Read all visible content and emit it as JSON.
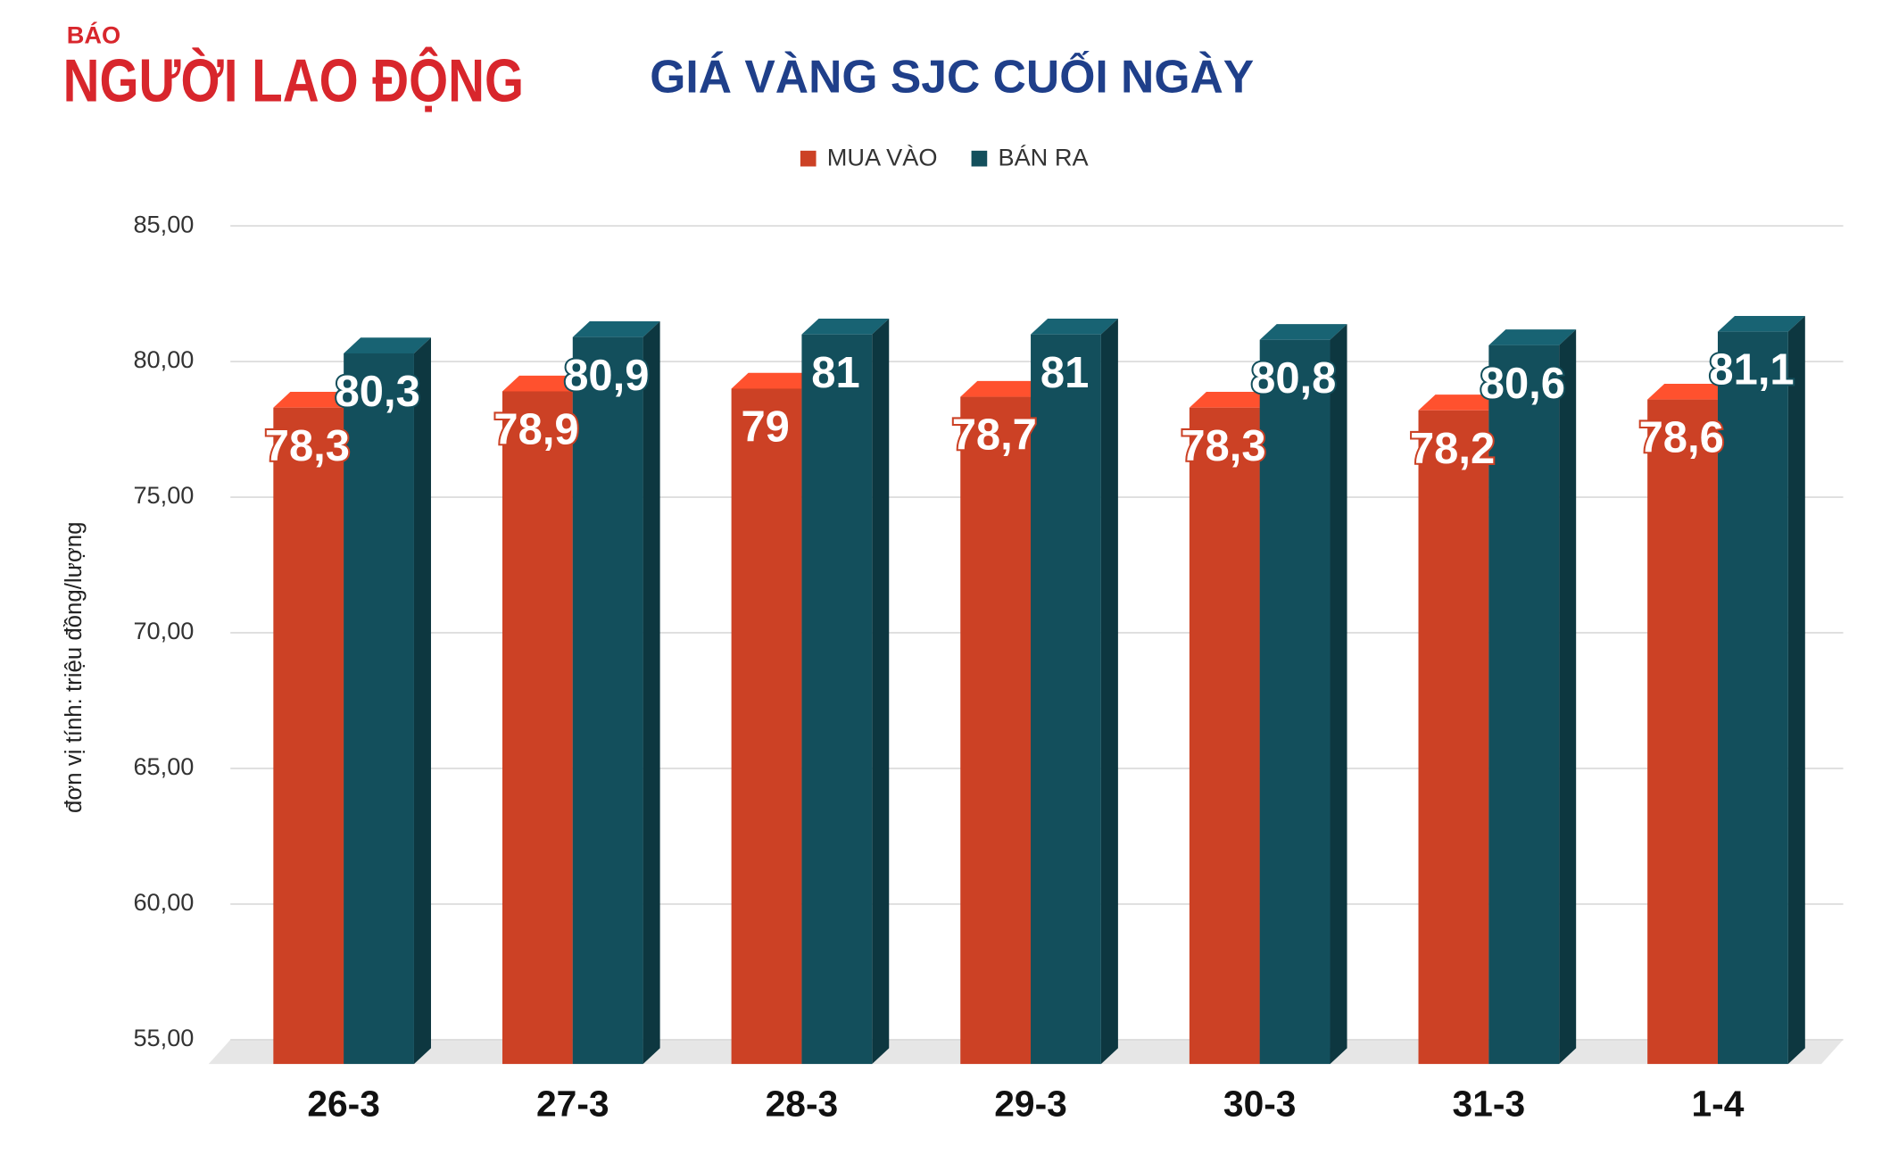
{
  "logo": {
    "top": "BÁO",
    "name": "NGƯỜI LAO ĐỘNG"
  },
  "chart_data": {
    "type": "bar3d",
    "title": "GIÁ VÀNG SJC CUỐI NGÀY",
    "y_label": "đơn vị tính: triệu đồng/lượng",
    "categories": [
      "26-3",
      "27-3",
      "28-3",
      "29-3",
      "30-3",
      "31-3",
      "1-4"
    ],
    "series": [
      {
        "name": "MUA VÀO",
        "color": "#cc4125",
        "values": [
          78.3,
          78.9,
          79,
          78.7,
          78.3,
          78.2,
          78.6
        ],
        "value_labels": [
          "78,3",
          "78,9",
          "79",
          "78,7",
          "78,3",
          "78,2",
          "78,6"
        ]
      },
      {
        "name": "BÁN RA",
        "color": "#134f5c",
        "values": [
          80.3,
          80.9,
          81,
          81,
          80.8,
          80.6,
          81.1
        ],
        "value_labels": [
          "80,3",
          "80,9",
          "81",
          "81",
          "80,8",
          "80,6",
          "81,1"
        ]
      }
    ],
    "ylim": [
      55,
      85
    ],
    "yticks": [
      {
        "value": 55,
        "label": "55,00"
      },
      {
        "value": 60,
        "label": "60,00"
      },
      {
        "value": 65,
        "label": "65,00"
      },
      {
        "value": 70,
        "label": "70,00"
      },
      {
        "value": 75,
        "label": "75,00"
      },
      {
        "value": 80,
        "label": "80,00"
      },
      {
        "value": 85,
        "label": "85,00"
      }
    ],
    "grid": true,
    "legend": "top"
  }
}
